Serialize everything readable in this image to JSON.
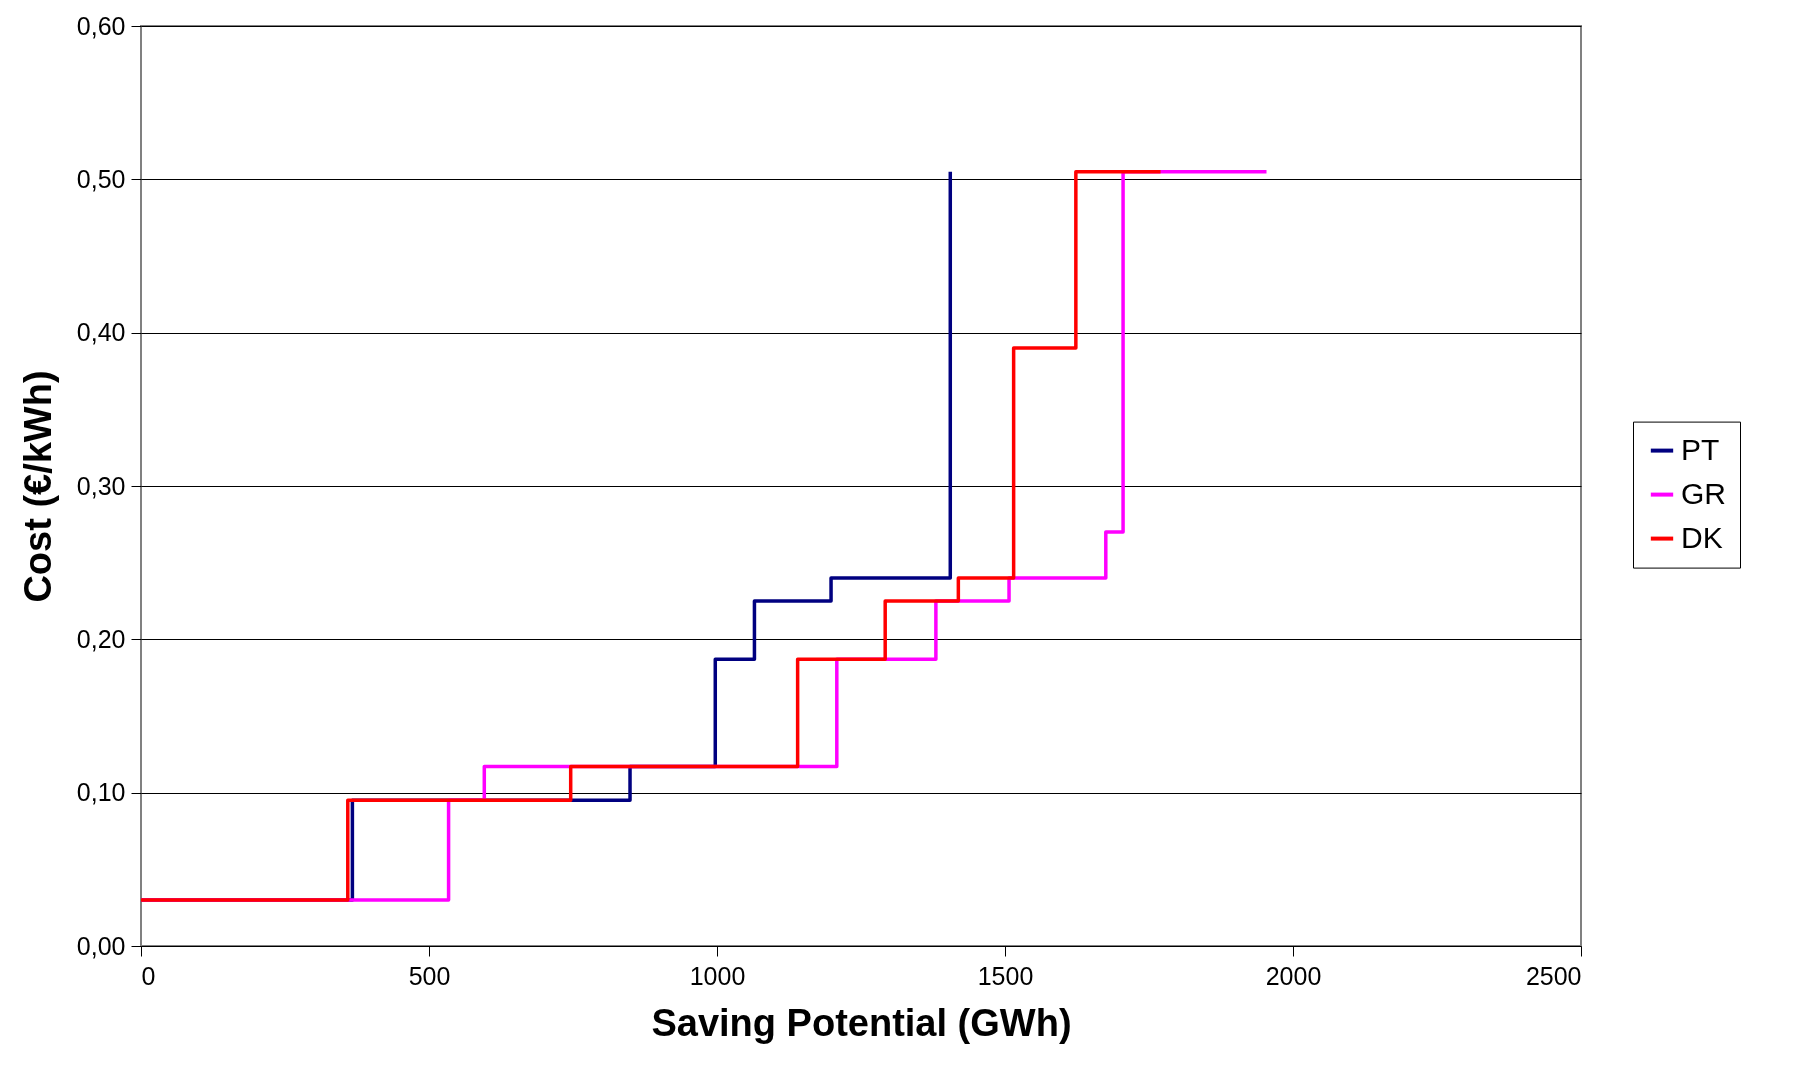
{
  "chart_data": {
    "type": "step",
    "xlabel": "Saving Potential (GWh)",
    "ylabel": "Cost (€/kWh)",
    "xlim": [
      0,
      2500
    ],
    "xticks": [
      0,
      500,
      1000,
      1500,
      2000,
      2500
    ],
    "ylim": [
      0,
      0.6
    ],
    "yticks": [
      {
        "value": 0,
        "label": "0,00"
      },
      {
        "value": 0.1,
        "label": "0,10"
      },
      {
        "value": 0.2,
        "label": "0,20"
      },
      {
        "value": 0.3,
        "label": "0,30"
      },
      {
        "value": 0.4,
        "label": "0,40"
      },
      {
        "value": 0.5,
        "label": "0,50"
      },
      {
        "value": 0.6,
        "label": "0,60"
      }
    ],
    "grid": "y",
    "legend": "right",
    "series": [
      {
        "name": "PT",
        "color": "#000080",
        "x": [
          0,
          367,
          849,
          997,
          1065,
          1198,
          1405
        ],
        "values": [
          0.03,
          0.095,
          0.117,
          0.187,
          0.225,
          0.24,
          0.505
        ]
      },
      {
        "name": "GR",
        "color": "#ff00ff",
        "x": [
          0,
          534,
          596,
          1208,
          1380,
          1507,
          1675,
          1705,
          1954
        ],
        "values": [
          0.03,
          0.095,
          0.117,
          0.187,
          0.225,
          0.24,
          0.27,
          0.505,
          0.505
        ]
      },
      {
        "name": "DK",
        "color": "#ff0000",
        "x": [
          0,
          359,
          746,
          1140,
          1292,
          1419,
          1515,
          1623,
          1770
        ],
        "values": [
          0.03,
          0.095,
          0.117,
          0.187,
          0.225,
          0.24,
          0.39,
          0.505,
          0.505
        ]
      }
    ]
  }
}
